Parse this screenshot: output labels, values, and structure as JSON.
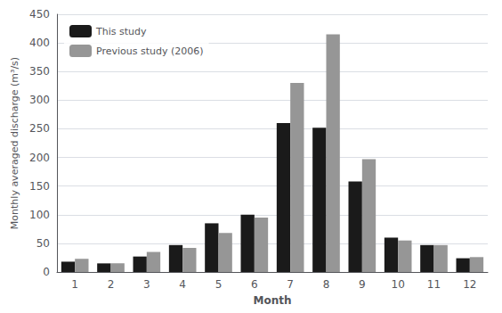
{
  "chart_data": {
    "type": "bar",
    "xlabel": "Month",
    "ylabel": "Monthly averaged discharge (m³/s)",
    "categories": [
      "1",
      "2",
      "3",
      "4",
      "5",
      "6",
      "7",
      "8",
      "9",
      "10",
      "11",
      "12"
    ],
    "series": [
      {
        "name": "This study",
        "color": "#1a1a1a",
        "values": [
          18,
          15,
          27,
          47,
          85,
          100,
          260,
          252,
          158,
          60,
          47,
          24
        ]
      },
      {
        "name": "Previous study (2006)",
        "color": "#969696",
        "values": [
          23,
          15,
          35,
          42,
          68,
          95,
          330,
          415,
          197,
          55,
          47,
          26
        ]
      }
    ],
    "ylim": [
      0,
      450
    ],
    "yticks": [
      0,
      50,
      100,
      150,
      200,
      250,
      300,
      350,
      400,
      450
    ],
    "grid": true,
    "legend": "upper left"
  }
}
